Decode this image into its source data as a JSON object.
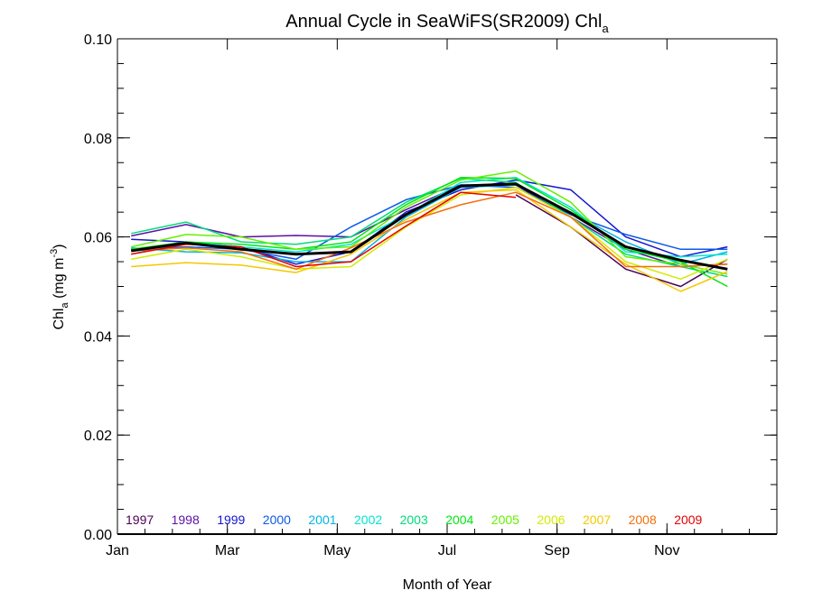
{
  "chart_data": {
    "type": "line",
    "title": "Annual Cycle in SeaWiFS(SR2009) Chl",
    "title_subscript": "a",
    "xlabel": "Month of Year",
    "ylabel": "Chl",
    "ylabel_subscript": "a",
    "ylabel_units": "(mg m",
    "ylabel_units_superscript": "-3",
    "ylabel_units_close": ")",
    "xlim": [
      0,
      12
    ],
    "ylim": [
      0.0,
      0.1
    ],
    "x_ticks": [
      {
        "value": 0,
        "label": "Jan"
      },
      {
        "value": 2,
        "label": "Mar"
      },
      {
        "value": 4,
        "label": "May"
      },
      {
        "value": 6,
        "label": "Jul"
      },
      {
        "value": 8,
        "label": "Sep"
      },
      {
        "value": 10,
        "label": "Nov"
      }
    ],
    "y_ticks": [
      {
        "value": 0.0,
        "label": "0.00"
      },
      {
        "value": 0.02,
        "label": "0.02"
      },
      {
        "value": 0.04,
        "label": "0.04"
      },
      {
        "value": 0.06,
        "label": "0.06"
      },
      {
        "value": 0.08,
        "label": "0.08"
      },
      {
        "value": 0.1,
        "label": "0.10"
      }
    ],
    "grid": false,
    "legend_placement": "bottom, inside plot",
    "x": [
      0.25,
      1.25,
      2.25,
      3.25,
      4.25,
      5.25,
      6.25,
      7.25,
      8.25,
      9.25,
      10.25,
      11.1
    ],
    "series": [
      {
        "name": "1997",
        "color": "#4b0055",
        "values": [
          null,
          null,
          null,
          null,
          null,
          null,
          null,
          0.0685,
          0.062,
          0.0535,
          0.05,
          0.0555
        ]
      },
      {
        "name": "1998",
        "color": "#5a10a8",
        "values": [
          0.0602,
          0.0625,
          0.06,
          0.0603,
          0.06,
          0.0655,
          0.0705,
          0.0705,
          0.064,
          0.0575,
          0.054,
          0.0545
        ]
      },
      {
        "name": "1999",
        "color": "#1414d2",
        "values": [
          0.0595,
          0.059,
          0.058,
          0.0545,
          0.057,
          0.065,
          0.0695,
          0.0715,
          0.0695,
          0.06,
          0.056,
          0.058
        ]
      },
      {
        "name": "2000",
        "color": "#0a5ae6",
        "values": [
          0.0575,
          0.058,
          0.0575,
          0.0555,
          0.062,
          0.0675,
          0.0705,
          0.07,
          0.0645,
          0.0605,
          0.0575,
          0.0575
        ]
      },
      {
        "name": "2001",
        "color": "#00b4e6",
        "values": [
          0.0578,
          0.057,
          0.0568,
          0.055,
          0.055,
          0.064,
          0.07,
          0.0705,
          0.065,
          0.059,
          0.0545,
          0.057
        ]
      },
      {
        "name": "2002",
        "color": "#00e6d2",
        "values": [
          0.0565,
          0.059,
          0.058,
          0.057,
          0.0585,
          0.0645,
          0.071,
          0.072,
          0.066,
          0.057,
          0.056,
          0.0565
        ]
      },
      {
        "name": "2003",
        "color": "#00dc7a",
        "values": [
          0.0607,
          0.063,
          0.059,
          0.0585,
          0.06,
          0.067,
          0.0718,
          0.071,
          0.064,
          0.0565,
          0.054,
          0.052
        ]
      },
      {
        "name": "2004",
        "color": "#00e614",
        "values": [
          0.0575,
          0.059,
          0.0585,
          0.0575,
          0.059,
          0.0665,
          0.072,
          0.0718,
          0.0655,
          0.0575,
          0.055,
          0.05
        ]
      },
      {
        "name": "2005",
        "color": "#64f000",
        "values": [
          0.058,
          0.0605,
          0.06,
          0.0575,
          0.058,
          0.066,
          0.0715,
          0.0733,
          0.067,
          0.056,
          0.0545,
          0.0525
        ]
      },
      {
        "name": "2006",
        "color": "#d2eb00",
        "values": [
          0.0555,
          0.0575,
          0.056,
          0.0535,
          0.054,
          0.062,
          0.0685,
          0.07,
          0.064,
          0.055,
          0.0515,
          0.0555
        ]
      },
      {
        "name": "2007",
        "color": "#f5c800",
        "values": [
          0.054,
          0.0548,
          0.0543,
          0.0528,
          0.0565,
          0.0635,
          0.069,
          0.0695,
          0.062,
          0.0545,
          0.049,
          0.053
        ]
      },
      {
        "name": "2008",
        "color": "#f56e0a",
        "values": [
          0.0572,
          0.0578,
          0.057,
          0.0535,
          0.0578,
          0.063,
          0.0665,
          0.069,
          0.064,
          0.054,
          0.054,
          0.0545
        ]
      },
      {
        "name": "2009",
        "color": "#e60000",
        "values": [
          0.0565,
          0.0585,
          0.058,
          0.054,
          0.055,
          0.0622,
          0.069,
          0.068,
          null,
          null,
          null,
          null
        ]
      },
      {
        "name": "",
        "color": "#000000",
        "values": [
          0.0572,
          0.0588,
          0.0575,
          0.0565,
          0.057,
          0.0645,
          0.0703,
          0.0707,
          0.0648,
          0.058,
          0.0553,
          0.0535
        ]
      }
    ]
  }
}
